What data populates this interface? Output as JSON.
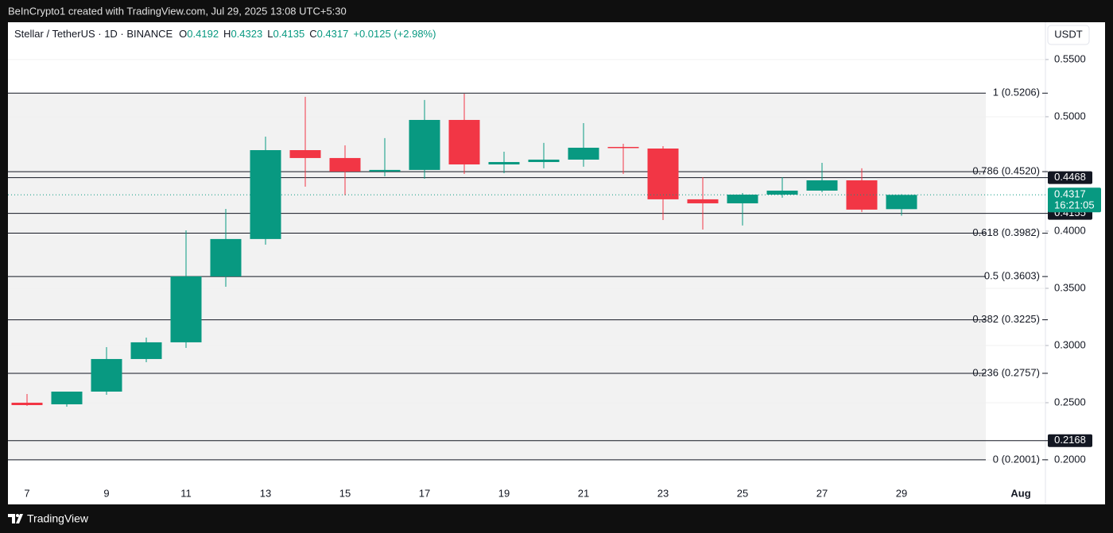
{
  "header": {
    "watermark": "BeInCrypto1 created with TradingView.com, Jul 29, 2025 13:08 UTC+5:30",
    "brand": "TradingView"
  },
  "chart_data": {
    "type": "candlestick",
    "title": "Stellar / TetherUS · 1D · BINANCE",
    "ohlc_labels": [
      "O",
      "H",
      "L",
      "C"
    ],
    "change": "+0.0125 (+2.98%)",
    "currency": "USDT",
    "countdown": "16:21:05",
    "categories": [
      "7",
      null,
      "9",
      null,
      "11",
      null,
      "13",
      null,
      "15",
      null,
      "17",
      null,
      "19",
      null,
      "21",
      null,
      "23",
      null,
      "25",
      null,
      "27",
      null,
      "29",
      null,
      null,
      "Aug"
    ],
    "open": [
      0.25,
      0.2486,
      0.2597,
      0.2882,
      0.3028,
      0.3604,
      0.3931,
      0.4708,
      0.4639,
      0.4521,
      0.4535,
      0.4972,
      0.4583,
      0.4604,
      0.4625,
      0.4736,
      0.4722,
      0.4278,
      0.4243,
      0.4319,
      0.4354,
      0.4444,
      0.4192,
      null,
      null,
      null
    ],
    "high": [
      0.2576,
      0.2597,
      0.2986,
      0.3069,
      0.4007,
      0.4194,
      0.4826,
      0.5174,
      0.475,
      0.4813,
      0.5146,
      0.5201,
      0.4694,
      0.4771,
      0.4944,
      0.4764,
      0.4743,
      0.4472,
      0.4333,
      0.4472,
      0.4597,
      0.4549,
      0.4323,
      null,
      null,
      null
    ],
    "low": [
      0.2472,
      0.2465,
      0.2569,
      0.2854,
      0.2979,
      0.3514,
      0.3882,
      0.4389,
      0.4313,
      0.4479,
      0.4458,
      0.45,
      0.4507,
      0.4549,
      0.4563,
      0.45,
      0.4097,
      0.4014,
      0.4049,
      0.4292,
      0.434,
      0.4167,
      0.4135,
      null,
      null,
      null
    ],
    "close": [
      0.2479,
      0.2597,
      0.2882,
      0.3028,
      0.3604,
      0.3931,
      0.4708,
      0.4639,
      0.4521,
      0.4535,
      0.4972,
      0.4583,
      0.4604,
      0.4625,
      0.4729,
      0.4729,
      0.4278,
      0.4243,
      0.4319,
      0.4354,
      0.4444,
      0.4188,
      0.4317,
      null,
      null,
      null
    ],
    "colors": {
      "up": "#089981",
      "down": "#f23645"
    },
    "ylim": [
      0.1611,
      0.5826
    ],
    "yticks": [
      {
        "value": 0.2,
        "label": "0.2000"
      },
      {
        "value": 0.25,
        "label": "0.2500"
      },
      {
        "value": 0.3,
        "label": "0.3000"
      },
      {
        "value": 0.35,
        "label": "0.3500"
      },
      {
        "value": 0.4,
        "label": "0.4000"
      },
      {
        "value": 0.5,
        "label": "0.5000"
      },
      {
        "value": 0.55,
        "label": "0.5500"
      }
    ],
    "fib_levels": [
      {
        "value": 0.5206,
        "label": "1 (0.5206)"
      },
      {
        "value": 0.452,
        "label": "0.786 (0.4520)"
      },
      {
        "value": 0.3982,
        "label": "0.618 (0.3982)"
      },
      {
        "value": 0.3603,
        "label": "0.5 (0.3603)"
      },
      {
        "value": 0.3225,
        "label": "0.382 (0.3225)"
      },
      {
        "value": 0.2757,
        "label": "0.236 (0.2757)"
      },
      {
        "value": 0.2001,
        "label": "0 (0.2001)"
      }
    ],
    "price_lines": [
      0.4468,
      0.4155,
      0.2168
    ]
  }
}
